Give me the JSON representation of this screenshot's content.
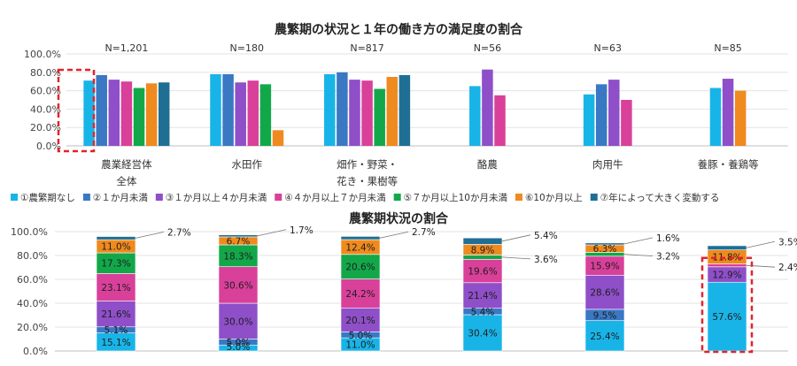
{
  "chart_data": [
    {
      "type": "bar",
      "title": "農繁期の状況と１年の働き方の満足度の割合",
      "ylim": [
        0,
        100
      ],
      "y_ticks": [
        "0.0%",
        "20.0%",
        "40.0%",
        "60.0%",
        "80.0%",
        "100.0%"
      ],
      "grid": true,
      "legend_position": "bottom",
      "categories": [
        "農業経営体全体",
        "水田作",
        "畑作・野菜・花き・果樹等",
        "酪農",
        "肉用牛",
        "養豚・養鶏等"
      ],
      "category_lines": [
        [
          "農業経営体",
          "全体"
        ],
        [
          "水田作"
        ],
        [
          "畑作・野菜・",
          "花き・果樹等"
        ],
        [
          "酪農"
        ],
        [
          "肉用牛"
        ],
        [
          "養豚・養鶏等"
        ]
      ],
      "n_labels": [
        "N=1,201",
        "N=180",
        "N=817",
        "N=56",
        "N=63",
        "N=85"
      ],
      "series": [
        {
          "name": "①農繁期なし",
          "color": "#18B4E8",
          "values": [
            71,
            78,
            78,
            65,
            56,
            63
          ]
        },
        {
          "name": "②１か月未満",
          "color": "#3A78C4",
          "values": [
            77,
            78,
            80,
            null,
            67,
            null
          ]
        },
        {
          "name": "③１か月以上４か月未満",
          "color": "#8E4FC8",
          "values": [
            72,
            69,
            72,
            83,
            72,
            73
          ]
        },
        {
          "name": "④４か月以上７か月未満",
          "color": "#D9409A",
          "values": [
            70,
            71,
            71,
            55,
            50,
            null
          ]
        },
        {
          "name": "⑤７か月以上10か月未満",
          "color": "#12A84A",
          "values": [
            63,
            67,
            62,
            null,
            null,
            null
          ]
        },
        {
          "name": "⑥10か月以上",
          "color": "#EF8A1F",
          "values": [
            68,
            17,
            75,
            null,
            null,
            60
          ]
        },
        {
          "name": "⑦年によって大きく変動する",
          "color": "#1F6F94",
          "values": [
            69,
            null,
            77,
            null,
            null,
            null
          ]
        }
      ],
      "highlight_category": 0
    },
    {
      "type": "bar",
      "stacked": true,
      "title": "農繁期状況の割合",
      "ylim": [
        0,
        100
      ],
      "y_ticks": [
        "0.0%",
        "20.0%",
        "40.0%",
        "60.0%",
        "80.0%",
        "100.0%"
      ],
      "categories": [
        "農業経営体全体",
        "水田作",
        "畑作・野菜・花き・果樹等",
        "酪農",
        "肉用牛",
        "養豚・養鶏等"
      ],
      "series": [
        {
          "name": "①農繁期なし",
          "color": "#18B4E8",
          "values": [
            15.1,
            5.0,
            11.0,
            30.4,
            25.4,
            57.6
          ]
        },
        {
          "name": "②１か月未満",
          "color": "#3A78C4",
          "values": [
            5.1,
            5.0,
            5.0,
            5.4,
            9.5,
            0.0
          ]
        },
        {
          "name": "③１か月以上４か月未満",
          "color": "#8E4FC8",
          "values": [
            21.6,
            30.0,
            20.1,
            21.4,
            28.6,
            12.9
          ]
        },
        {
          "name": "④４か月以上７か月未満",
          "color": "#D9409A",
          "values": [
            23.1,
            30.6,
            24.2,
            19.6,
            15.9,
            2.4
          ]
        },
        {
          "name": "⑤７か月以上10か月未満",
          "color": "#12A84A",
          "values": [
            17.3,
            18.3,
            20.6,
            3.6,
            3.2,
            0.0
          ]
        },
        {
          "name": "⑥10か月以上",
          "color": "#EF8A1F",
          "values": [
            11.0,
            6.7,
            12.4,
            8.9,
            6.3,
            11.8
          ]
        },
        {
          "name": "⑦年によって大きく変動する",
          "color": "#1F6F94",
          "values": [
            2.7,
            1.7,
            2.7,
            5.4,
            1.6,
            3.5
          ]
        }
      ],
      "data_labels": [
        [
          "15.1%",
          "5.1%",
          "21.6%",
          "23.1%",
          "17.3%",
          "11.0%",
          "2.7%"
        ],
        [
          "5.0%",
          "5.0%",
          "30.0%",
          "30.6%",
          "18.3%",
          "6.7%",
          "1.7%"
        ],
        [
          "11.0%",
          "5.0%",
          "20.1%",
          "24.2%",
          "20.6%",
          "12.4%",
          "2.7%"
        ],
        [
          "30.4%",
          "5.4%",
          "21.4%",
          "19.6%",
          "3.6%",
          "8.9%",
          "5.4%"
        ],
        [
          "25.4%",
          "9.5%",
          "28.6%",
          "15.9%",
          "3.2%",
          "6.3%",
          "1.6%"
        ],
        [
          "57.6%",
          "",
          "12.9%",
          "2.4%",
          "",
          "11.8%",
          "3.5%"
        ]
      ],
      "highlight_category": 5
    }
  ]
}
